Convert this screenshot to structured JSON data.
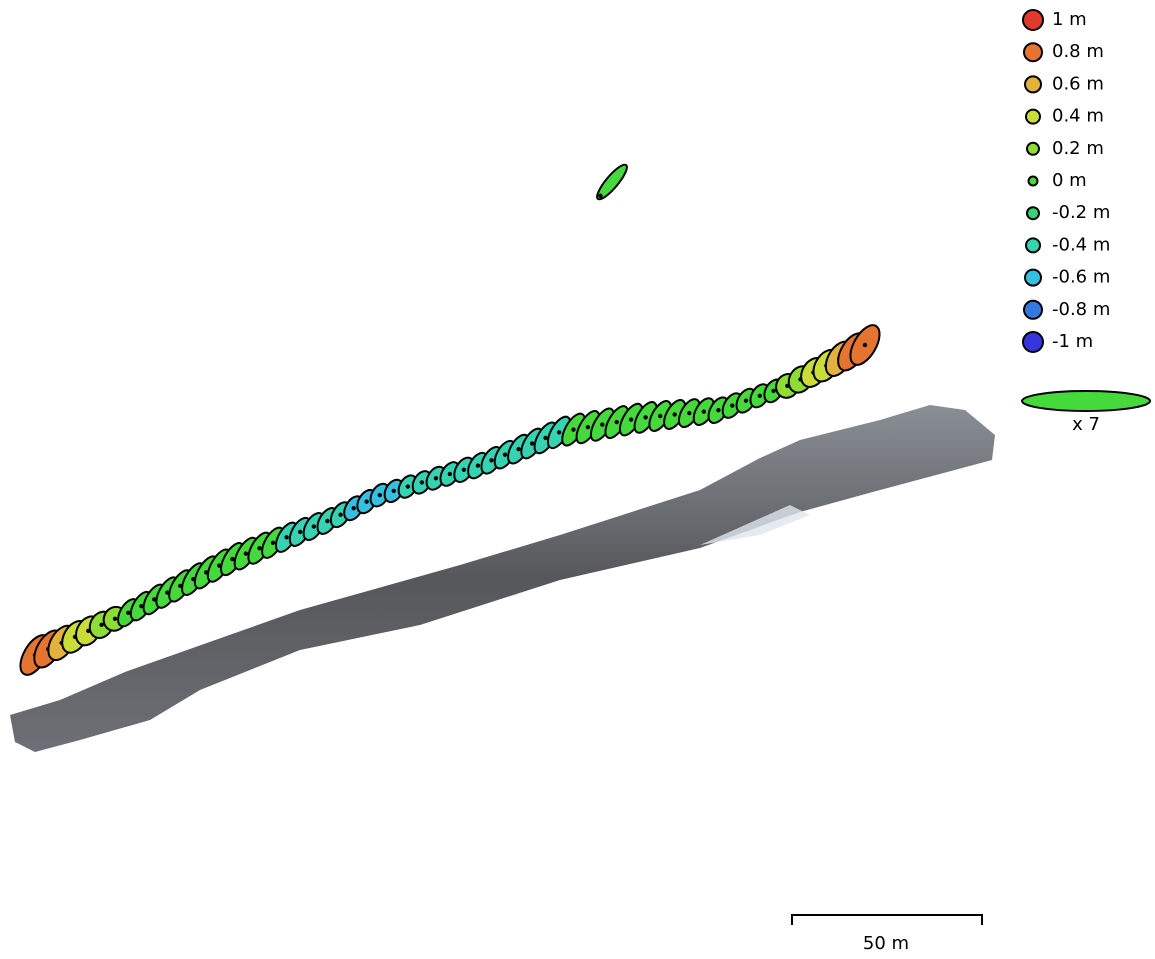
{
  "legend": {
    "items": [
      {
        "label": "1 m",
        "color": "#e03a2e"
      },
      {
        "label": "0.8 m",
        "color": "#e4742f"
      },
      {
        "label": "0.6 m",
        "color": "#e2b23a"
      },
      {
        "label": "0.4 m",
        "color": "#c9dc3a"
      },
      {
        "label": "0.2 m",
        "color": "#8fdc35"
      },
      {
        "label": "0 m",
        "color": "#45d93b"
      },
      {
        "label": "-0.2 m",
        "color": "#37d27a"
      },
      {
        "label": "-0.4 m",
        "color": "#36d3b2"
      },
      {
        "label": "-0.6 m",
        "color": "#35bfe0"
      },
      {
        "label": "-0.8 m",
        "color": "#3579e0"
      },
      {
        "label": "-1 m",
        "color": "#3535dc"
      }
    ],
    "scale_label": "x 7"
  },
  "scale_bar": {
    "label": "50 m"
  }
}
